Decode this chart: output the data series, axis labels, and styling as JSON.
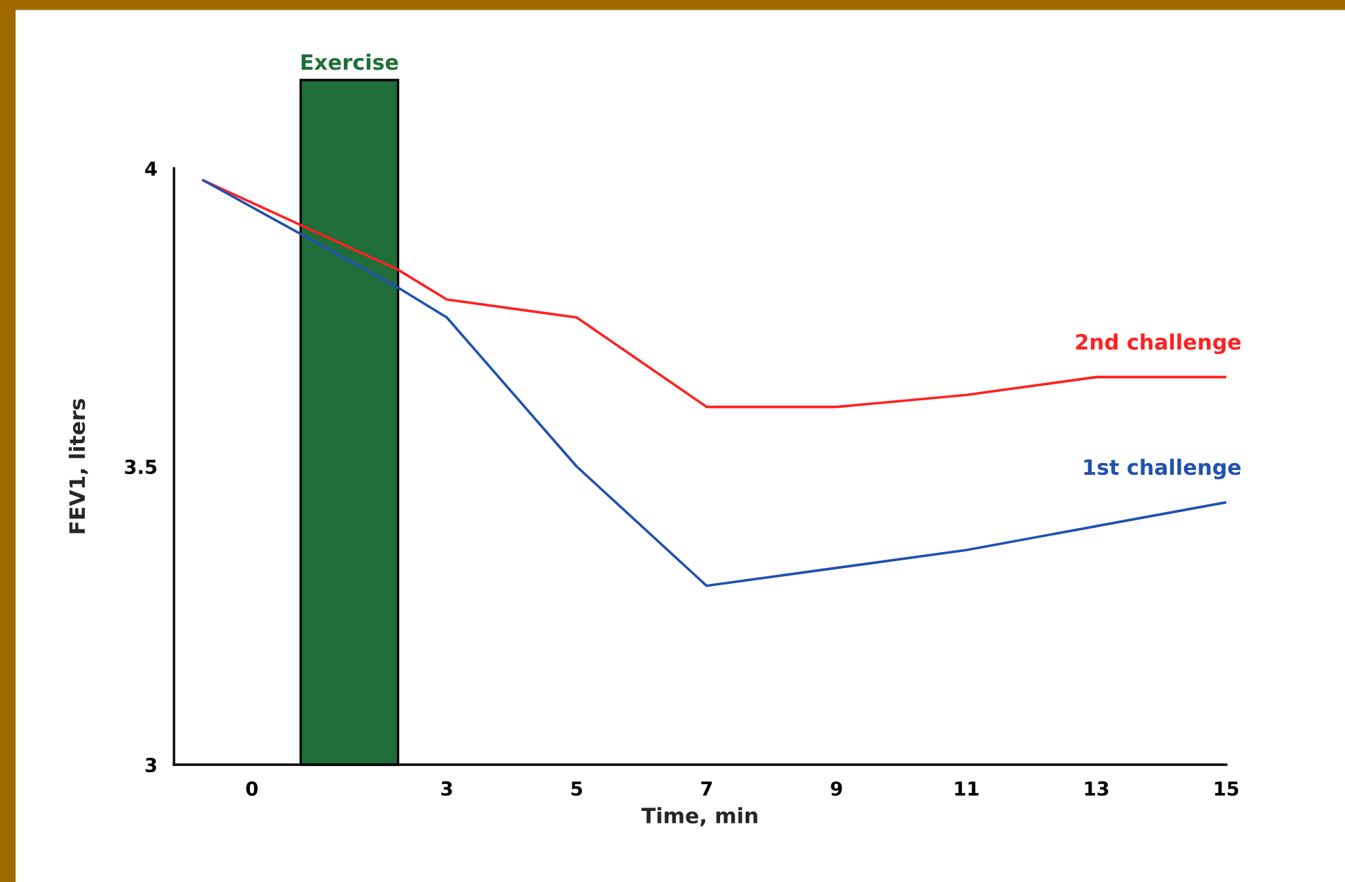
{
  "chart_data": {
    "type": "line",
    "xlabel": "Time, min",
    "ylabel": "FEV1, liters",
    "xlim": [
      -1.2,
      15
    ],
    "ylim": [
      3,
      4
    ],
    "xticks": [
      0,
      3,
      5,
      7,
      9,
      11,
      13,
      15
    ],
    "yticks": [
      3,
      3.5,
      4
    ],
    "bands": [
      {
        "axis": "x",
        "from": 0.75,
        "to": 2.25,
        "label": "Exercise",
        "color": "#1f6e3a"
      }
    ],
    "series": [
      {
        "name": "2nd challenge",
        "color": "#ff2020",
        "x": [
          -0.75,
          2.25,
          3,
          5,
          7,
          9,
          11,
          13,
          15
        ],
        "values": [
          3.98,
          3.83,
          3.78,
          3.75,
          3.6,
          3.6,
          3.62,
          3.65,
          3.65
        ]
      },
      {
        "name": "1st challenge",
        "color": "#2050b0",
        "x": [
          -0.75,
          2.25,
          3,
          5,
          7,
          9,
          11,
          13,
          15
        ],
        "values": [
          3.98,
          3.8,
          3.75,
          3.5,
          3.3,
          3.33,
          3.36,
          3.4,
          3.44
        ]
      }
    ],
    "grid": false,
    "legend": false
  }
}
